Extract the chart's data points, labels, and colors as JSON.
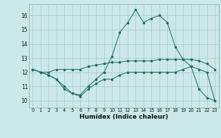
{
  "xlabel": "Humidex (Indice chaleur)",
  "bg_color": "#cce8e8",
  "grid_color": "#aacccc",
  "line_color": "#1e6b6b",
  "xlim": [
    -0.5,
    23.5
  ],
  "ylim": [
    9.5,
    16.8
  ],
  "xticks": [
    0,
    1,
    2,
    3,
    4,
    5,
    6,
    7,
    8,
    9,
    10,
    11,
    12,
    13,
    14,
    15,
    16,
    17,
    18,
    19,
    20,
    21,
    22,
    23
  ],
  "yticks": [
    10,
    11,
    12,
    13,
    14,
    15,
    16
  ],
  "line1": [
    12.2,
    12.0,
    11.8,
    11.5,
    10.8,
    10.5,
    10.3,
    10.8,
    11.2,
    11.5,
    11.5,
    11.8,
    12.0,
    12.0,
    12.0,
    12.0,
    12.0,
    12.0,
    12.0,
    12.2,
    12.4,
    12.2,
    12.0,
    10.0
  ],
  "line2": [
    12.2,
    12.0,
    11.8,
    11.5,
    11.0,
    10.5,
    10.4,
    11.0,
    11.5,
    12.0,
    13.1,
    14.8,
    15.5,
    16.4,
    15.5,
    15.8,
    16.0,
    15.5,
    13.8,
    12.9,
    12.4,
    10.8,
    10.2,
    10.0
  ],
  "line3": [
    12.2,
    12.0,
    12.0,
    12.2,
    12.2,
    12.2,
    12.2,
    12.4,
    12.5,
    12.6,
    12.7,
    12.7,
    12.8,
    12.8,
    12.8,
    12.8,
    12.9,
    12.9,
    12.9,
    12.9,
    12.9,
    12.8,
    12.6,
    12.2
  ]
}
